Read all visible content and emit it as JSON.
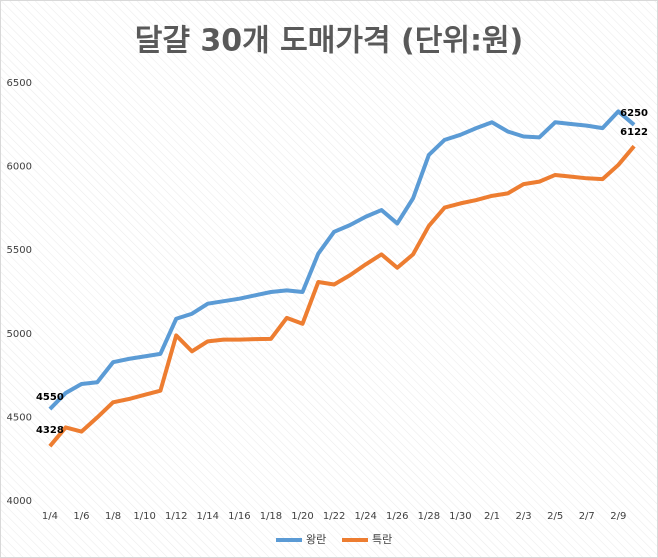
{
  "chart_data": {
    "type": "line",
    "title": "달걀 30개 도매가격 (단위:원)",
    "categories": [
      "1/4",
      null,
      "1/6",
      null,
      "1/8",
      null,
      "1/10",
      null,
      "1/12",
      null,
      "1/14",
      null,
      "1/16",
      null,
      "1/18",
      null,
      "1/20",
      null,
      "1/22",
      null,
      "1/24",
      null,
      "1/26",
      null,
      "1/28",
      null,
      "1/30",
      null,
      "2/1",
      null,
      "2/3",
      null,
      "2/5",
      null,
      "2/7",
      null,
      "2/9",
      null
    ],
    "series": [
      {
        "name": "왕란",
        "color": "#5b9bd5",
        "values": [
          4550,
          4646,
          4700,
          4710,
          4830,
          4850,
          4865,
          4880,
          5090,
          5120,
          5180,
          5195,
          5210,
          5230,
          5250,
          5260,
          5250,
          5480,
          5610,
          5650,
          5700,
          5740,
          5660,
          5810,
          6070,
          6160,
          6190,
          6230,
          6265,
          6210,
          6180,
          6175,
          6265,
          6255,
          6245,
          6230,
          6330,
          6250
        ]
      },
      {
        "name": "특란",
        "color": "#ed7d31",
        "values": [
          4328,
          4440,
          4415,
          4500,
          4590,
          4610,
          4635,
          4660,
          4990,
          4895,
          4955,
          4965,
          4965,
          4968,
          4970,
          5095,
          5060,
          5310,
          5295,
          5350,
          5415,
          5475,
          5395,
          5475,
          5645,
          5755,
          5780,
          5800,
          5825,
          5840,
          5895,
          5910,
          5950,
          5940,
          5930,
          5925,
          6010,
          6122
        ]
      }
    ],
    "ylim": [
      4000,
      6500
    ],
    "yticks": [
      4000,
      4500,
      5000,
      5500,
      6000,
      6500
    ],
    "grid": false,
    "legend": "bottom"
  }
}
